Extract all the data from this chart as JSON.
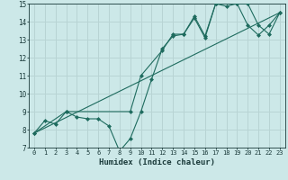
{
  "background_color": "#cce8e8",
  "grid_color": "#b8d4d4",
  "line_color": "#1e6b5e",
  "xlabel": "Humidex (Indice chaleur)",
  "ylim": [
    7,
    15
  ],
  "xlim": [
    -0.5,
    23.5
  ],
  "yticks": [
    7,
    8,
    9,
    10,
    11,
    12,
    13,
    14,
    15
  ],
  "xticks": [
    0,
    1,
    2,
    3,
    4,
    5,
    6,
    7,
    8,
    9,
    10,
    11,
    12,
    13,
    14,
    15,
    16,
    17,
    18,
    19,
    20,
    21,
    22,
    23
  ],
  "series": [
    {
      "x": [
        0,
        1,
        2,
        3,
        4,
        5,
        6,
        7,
        8,
        9,
        10,
        11,
        12,
        13,
        14,
        15,
        16,
        17,
        18,
        19,
        20,
        21,
        22,
        23
      ],
      "y": [
        7.8,
        8.5,
        8.3,
        9.0,
        8.7,
        8.6,
        8.6,
        8.2,
        6.8,
        7.5,
        9.0,
        10.8,
        12.5,
        13.2,
        13.3,
        14.2,
        13.1,
        15.0,
        14.85,
        15.0,
        13.8,
        13.25,
        13.8,
        14.5
      ]
    },
    {
      "x": [
        0,
        3,
        9,
        10,
        12,
        13,
        14,
        15,
        16,
        17,
        19,
        20,
        21,
        22,
        23
      ],
      "y": [
        7.8,
        9.0,
        9.0,
        11.0,
        12.4,
        13.3,
        13.3,
        14.3,
        13.2,
        15.0,
        15.0,
        15.0,
        13.8,
        13.3,
        14.5
      ]
    },
    {
      "x": [
        0,
        23
      ],
      "y": [
        7.8,
        14.5
      ]
    }
  ]
}
